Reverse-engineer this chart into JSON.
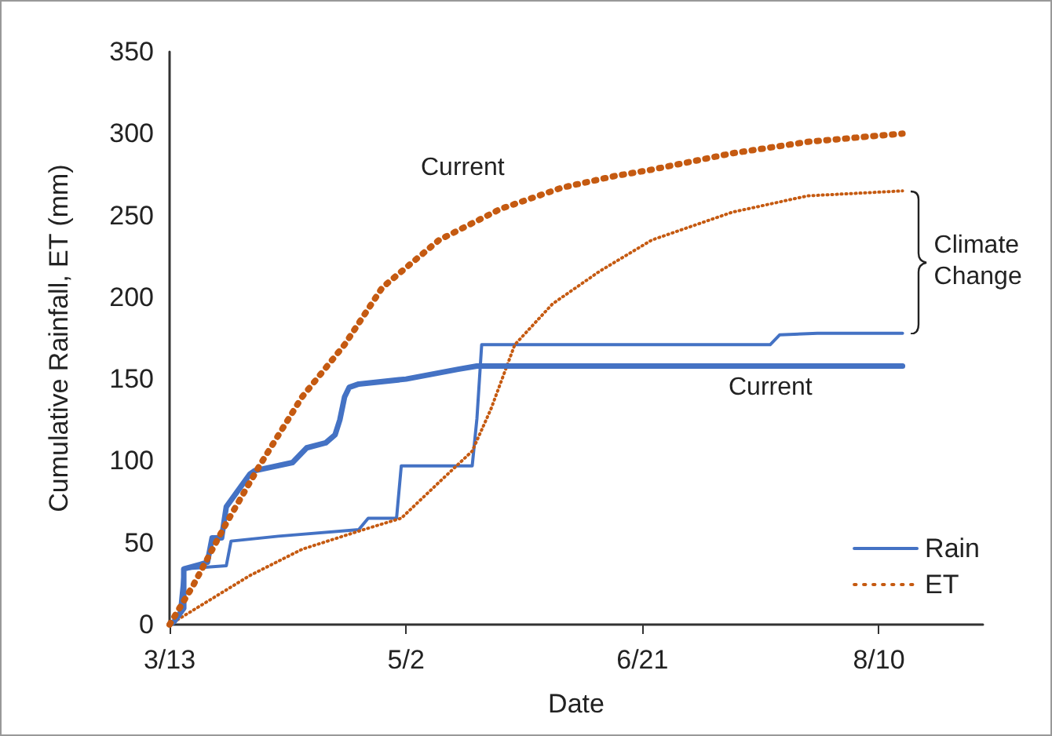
{
  "chart_data": {
    "type": "line",
    "xlabel": "Date",
    "ylabel": "Cumulative Rainfall, ET (mm)",
    "xlim": [
      "--03-13",
      "--09-01"
    ],
    "xticks": [
      {
        "value": "--03-13",
        "label": "3/13"
      },
      {
        "value": "--05-02",
        "label": "5/2"
      },
      {
        "value": "--06-21",
        "label": "6/21"
      },
      {
        "value": "--08-10",
        "label": "8/10"
      }
    ],
    "ylim": [
      0,
      350
    ],
    "yticks": [
      0,
      50,
      100,
      150,
      200,
      250,
      300,
      350
    ],
    "grid": false,
    "legend": "bottom right",
    "marker": "none",
    "annotations": [
      "Current",
      "Current",
      "Climate Change"
    ],
    "series": [
      {
        "name": "Rain",
        "color": "#4472c4",
        "line_style": "solid",
        "x": [
          "--03-13",
          "--03-14",
          "--03-16",
          "--03-16",
          "--03-21",
          "--03-22",
          "--03-24",
          "--03-25",
          "--03-27",
          "--03-30",
          "--03-31",
          "--04-08",
          "--04-11",
          "--04-15",
          "--04-17",
          "--04-18",
          "--04-19",
          "--04-20",
          "--04-22",
          "--05-02",
          "--05-13",
          "--05-17",
          "--08-15"
        ],
        "values": [
          0,
          2,
          10,
          34,
          38,
          53,
          53,
          72,
          80,
          92,
          94,
          99,
          108,
          111,
          116,
          125,
          139,
          145,
          147,
          150,
          156,
          158,
          158
        ]
      },
      {
        "color": "#4472c4",
        "line_style": "solid",
        "x": [
          "--03-13",
          "--03-15",
          "--03-16",
          "--03-25",
          "--03-26",
          "--04-05",
          "--04-22",
          "--04-24",
          "--04-30",
          "--05-01",
          "--05-16",
          "--05-17",
          "--05-18",
          "--07-18",
          "--07-20",
          "--07-28",
          "--08-15"
        ],
        "values": [
          0,
          5,
          34,
          36,
          51,
          54,
          58,
          65,
          65,
          97,
          97,
          126,
          171,
          171,
          177,
          178,
          178
        ]
      },
      {
        "name": "ET",
        "color": "#c55a11",
        "line_style": "dotted",
        "x": [
          "--03-13",
          "--03-18",
          "--03-25",
          "--04-01",
          "--04-10",
          "--04-19",
          "--04-27",
          "--05-09",
          "--05-22",
          "--06-04",
          "--06-15",
          "--06-23",
          "--07-10",
          "--07-26",
          "--08-15"
        ],
        "values": [
          0,
          24,
          62,
          97,
          139,
          171,
          206,
          235,
          254,
          267,
          274,
          278,
          288,
          295,
          300
        ]
      },
      {
        "color": "#c55a11",
        "line_style": "dotted",
        "x": [
          "--03-13",
          "--03-30",
          "--04-10",
          "--04-23",
          "--05-01",
          "--05-09",
          "--05-16",
          "--05-20",
          "--05-25",
          "--06-02",
          "--06-12",
          "--06-23",
          "--07-10",
          "--07-26",
          "--08-15"
        ],
        "values": [
          0,
          30,
          46,
          58,
          65,
          87,
          106,
          132,
          171,
          196,
          216,
          235,
          252,
          262,
          265
        ]
      }
    ]
  }
}
